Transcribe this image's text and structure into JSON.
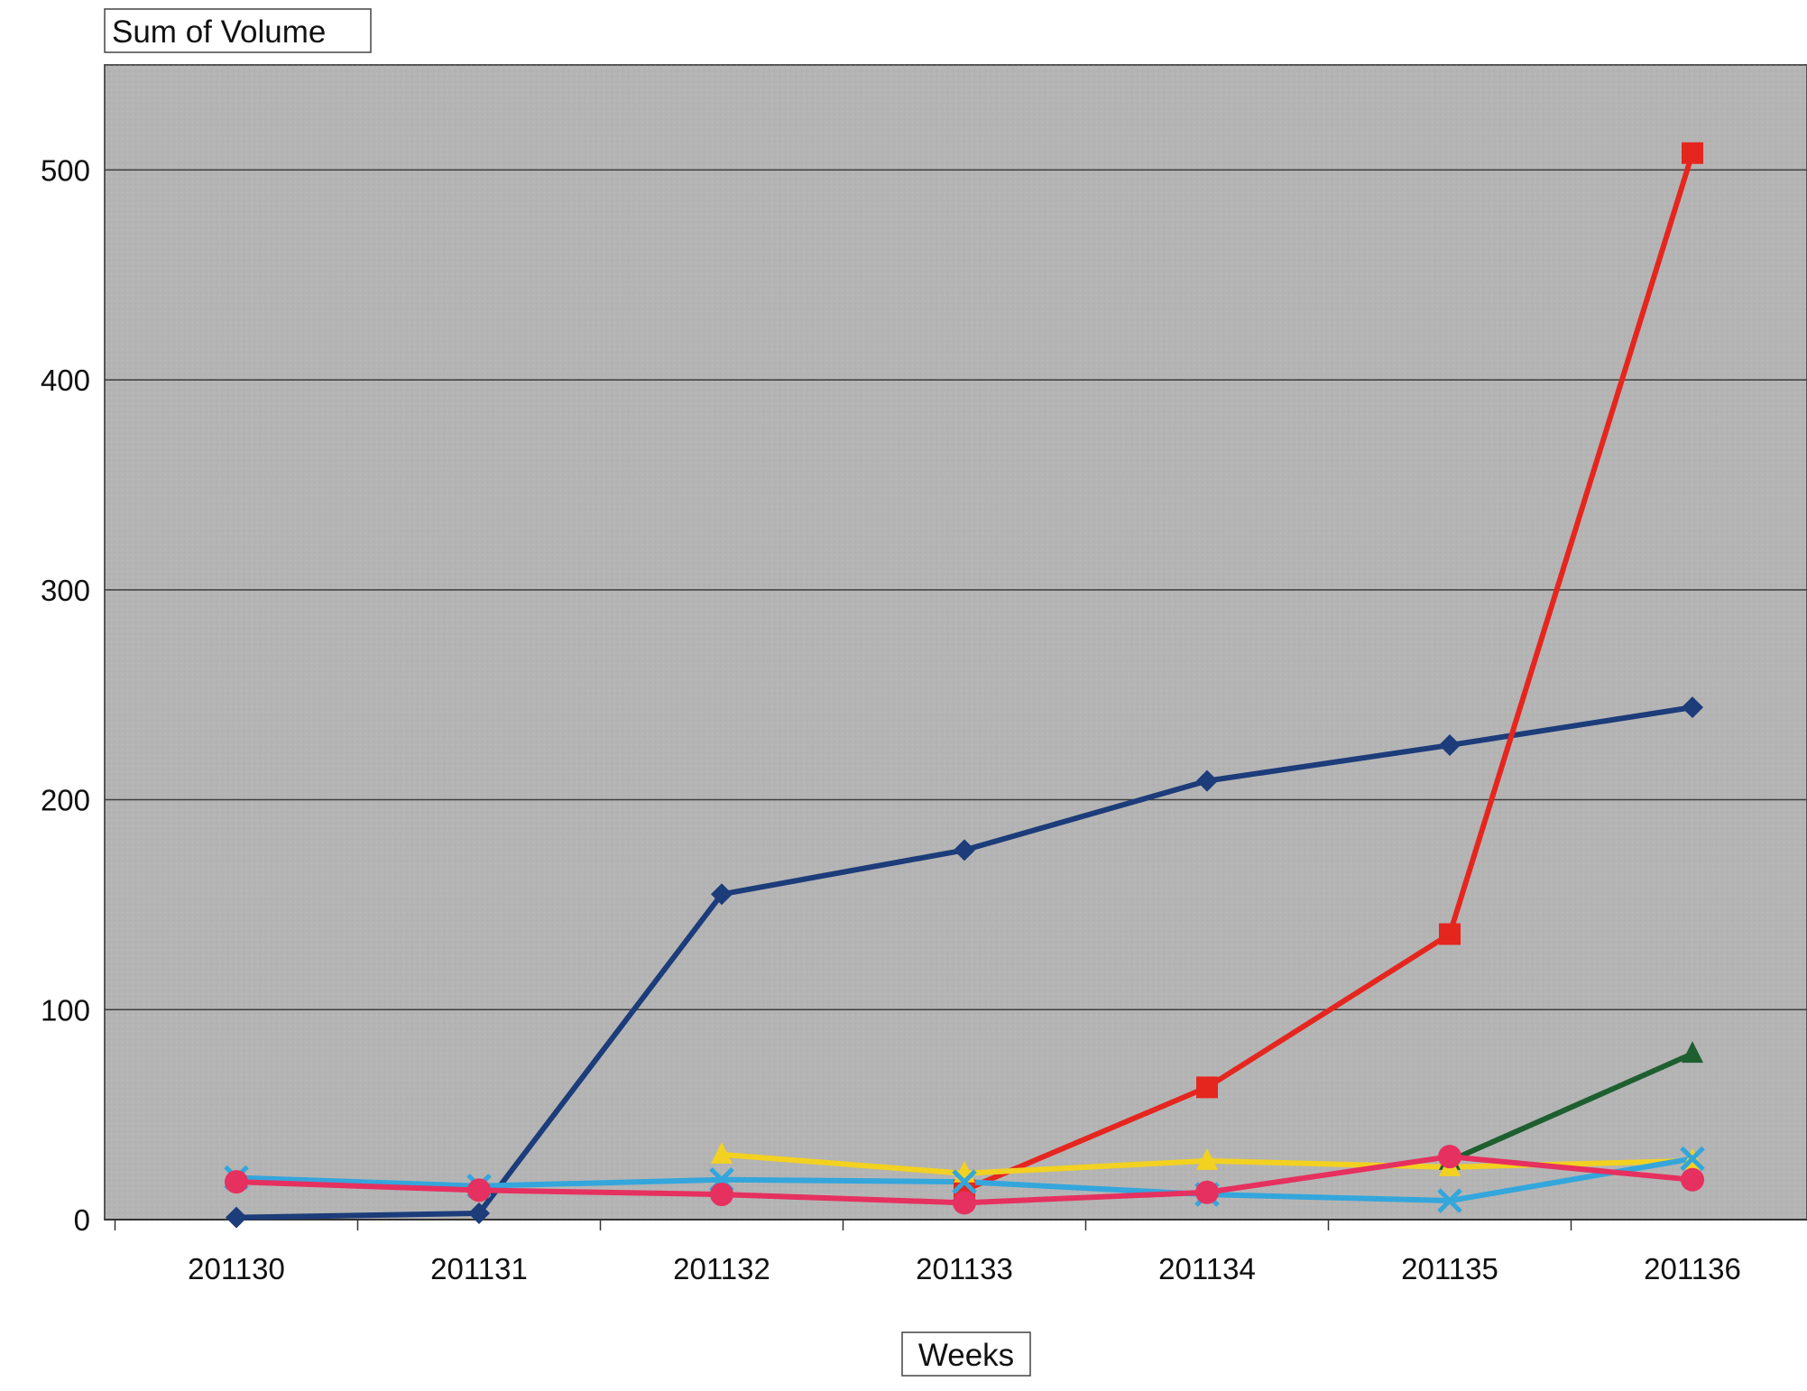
{
  "chart_data": {
    "type": "line",
    "title": "Sum of Volume",
    "xlabel": "Weeks",
    "ylabel": "",
    "categories": [
      "201130",
      "201131",
      "201132",
      "201133",
      "201134",
      "201135",
      "201136"
    ],
    "ylim": [
      0,
      550
    ],
    "yticks": [
      0,
      100,
      200,
      300,
      400,
      500
    ],
    "grid": true,
    "legend": "none",
    "series": [
      {
        "color": "#1c3c7a",
        "marker": "diamond",
        "values": [
          1,
          3,
          155,
          176,
          209,
          226,
          244
        ]
      },
      {
        "color": "#e5261f",
        "marker": "square",
        "values": [
          null,
          null,
          null,
          14,
          63,
          136,
          508
        ]
      },
      {
        "color": "#1e5f30",
        "marker": "triangle",
        "values": [
          null,
          null,
          null,
          null,
          null,
          28,
          79
        ]
      },
      {
        "color": "#f2d120",
        "marker": "triangle",
        "values": [
          null,
          null,
          31,
          22,
          28,
          25,
          28
        ]
      },
      {
        "color": "#33a6dc",
        "marker": "x",
        "values": [
          20,
          16,
          19,
          18,
          12,
          9,
          29
        ]
      },
      {
        "color": "#e6305f",
        "marker": "circle",
        "values": [
          18,
          14,
          12,
          8,
          13,
          30,
          19
        ]
      }
    ],
    "plot_background": "#b4b4b4"
  }
}
